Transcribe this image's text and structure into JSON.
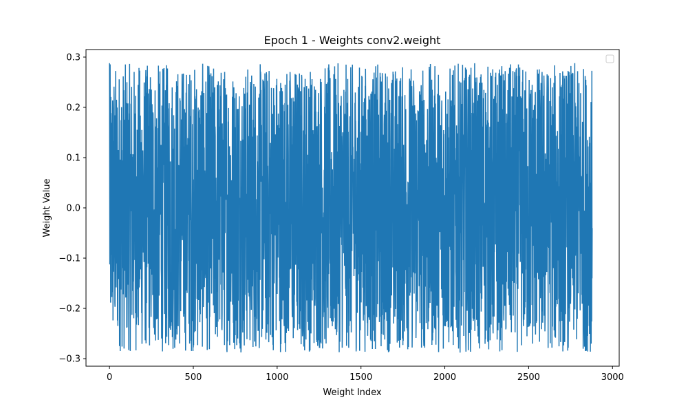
{
  "chart_data": {
    "type": "line",
    "title": "Epoch 1 - Weights conv2.weight",
    "xlabel": "Weight Index",
    "ylabel": "Weight Value",
    "xlim": [
      -140,
      3040
    ],
    "ylim": [
      -0.315,
      0.315
    ],
    "x_ticks": [
      0,
      500,
      1000,
      1500,
      2000,
      2500,
      3000
    ],
    "x_tick_labels": [
      "0",
      "500",
      "1000",
      "1500",
      "2000",
      "2500",
      "3000"
    ],
    "y_ticks": [
      -0.3,
      -0.2,
      -0.1,
      0.0,
      0.1,
      0.2,
      0.3
    ],
    "y_tick_labels": [
      "−0.3",
      "−0.2",
      "−0.1",
      "0.0",
      "0.1",
      "0.2",
      "0.3"
    ],
    "grid": false,
    "legend": {
      "placement": "upper right",
      "entries": []
    },
    "series": [
      {
        "color": "#1f77b4",
        "n_points": 2880,
        "x_start": 0,
        "x_end": 2879,
        "value_range": [
          -0.288,
          0.288
        ],
        "distribution": "uniform",
        "first_value": 0.288,
        "last_value": -0.04
      }
    ]
  }
}
